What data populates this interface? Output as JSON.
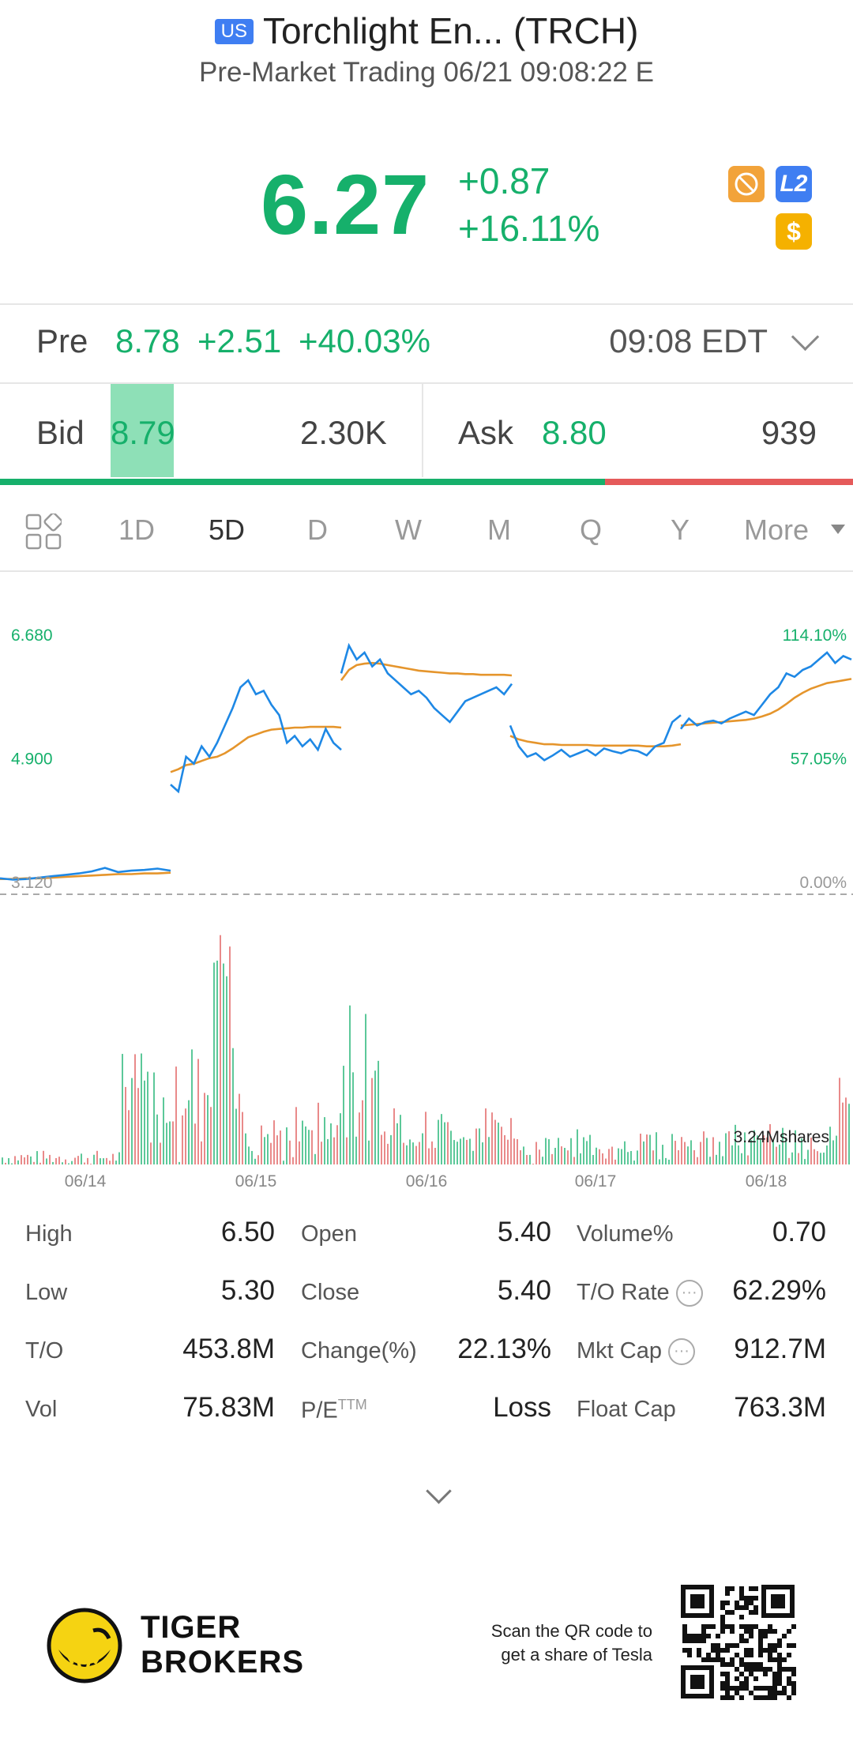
{
  "header": {
    "market_badge": "US",
    "title": "Torchlight En... (TRCH)",
    "subtitle": "Pre-Market Trading 06/21 09:08:22 E"
  },
  "quote": {
    "price": "6.27",
    "change": "+0.87",
    "change_pct": "+16.11%"
  },
  "icons": [
    "no-sign-icon",
    "level2-icon",
    "dollar-icon"
  ],
  "level2_label": "L2",
  "dollar_label": "$",
  "pre_market": {
    "label": "Pre",
    "price": "8.78",
    "change": "+2.51",
    "change_pct": "+40.03%",
    "time": "09:08 EDT"
  },
  "bid_ask": {
    "bid_label": "Bid",
    "bid_price": "8.79",
    "bid_size": "2.30K",
    "ask_label": "Ask",
    "ask_price": "8.80",
    "ask_size": "939",
    "bid_ratio": 0.71
  },
  "tabs": {
    "items": [
      "1D",
      "5D",
      "D",
      "W",
      "M",
      "Q",
      "Y",
      "More"
    ],
    "active": "5D"
  },
  "colors": {
    "green": "#16b06b",
    "red": "#e55a5a",
    "price_line": "#1e88e5",
    "avg_line": "#e5952c"
  },
  "chart_data": {
    "type": "line",
    "x_labels": [
      "06/14",
      "06/15",
      "06/16",
      "06/17",
      "06/18"
    ],
    "y_left_labels": [
      "6.680",
      "4.900",
      "3.120"
    ],
    "y_right_labels": [
      "114.10%",
      "57.05%",
      "0.00%"
    ],
    "ylim": [
      3.12,
      6.68
    ],
    "reference_value": 3.12,
    "volume_label": "3.24Mshares",
    "series": [
      {
        "day": "06/14",
        "price": [
          3.35,
          3.33,
          3.34,
          3.36,
          3.38,
          3.4,
          3.42,
          3.45,
          3.5,
          3.44,
          3.46,
          3.47,
          3.49,
          3.46
        ],
        "avg": [
          3.34,
          3.34,
          3.35,
          3.35,
          3.36,
          3.37,
          3.38,
          3.39,
          3.4,
          3.41,
          3.41,
          3.42,
          3.42,
          3.43
        ]
      },
      {
        "day": "06/15",
        "price": [
          4.7,
          4.6,
          5.1,
          5.0,
          5.25,
          5.1,
          5.3,
          5.55,
          5.8,
          6.1,
          6.2,
          6.0,
          6.05,
          5.85,
          5.7,
          5.3,
          5.4,
          5.25,
          5.35,
          5.2,
          5.5,
          5.3,
          5.2
        ],
        "avg": [
          4.88,
          4.92,
          4.98,
          5.0,
          5.04,
          5.08,
          5.1,
          5.15,
          5.22,
          5.3,
          5.38,
          5.42,
          5.46,
          5.49,
          5.5,
          5.51,
          5.52,
          5.52,
          5.53,
          5.53,
          5.53,
          5.53,
          5.52
        ]
      },
      {
        "day": "06/16",
        "price": [
          6.3,
          6.7,
          6.5,
          6.6,
          6.4,
          6.5,
          6.3,
          6.2,
          6.1,
          6.0,
          6.05,
          5.95,
          5.8,
          5.7,
          5.6,
          5.75,
          5.9,
          5.95,
          6.0,
          6.05,
          6.1,
          6.0,
          6.15
        ],
        "avg": [
          6.2,
          6.35,
          6.42,
          6.44,
          6.45,
          6.44,
          6.42,
          6.4,
          6.38,
          6.36,
          6.34,
          6.33,
          6.32,
          6.31,
          6.3,
          6.3,
          6.29,
          6.29,
          6.28,
          6.28,
          6.28,
          6.28,
          6.27
        ]
      },
      {
        "day": "06/17",
        "price": [
          5.55,
          5.25,
          5.1,
          5.15,
          5.05,
          5.12,
          5.2,
          5.1,
          5.15,
          5.2,
          5.12,
          5.22,
          5.18,
          5.15,
          5.2,
          5.18,
          5.12,
          5.25,
          5.3,
          5.6,
          5.7
        ],
        "avg": [
          5.4,
          5.35,
          5.32,
          5.3,
          5.28,
          5.28,
          5.27,
          5.27,
          5.27,
          5.27,
          5.26,
          5.26,
          5.26,
          5.26,
          5.26,
          5.26,
          5.25,
          5.25,
          5.25,
          5.26,
          5.28
        ]
      },
      {
        "day": "06/18",
        "price": [
          5.5,
          5.65,
          5.55,
          5.6,
          5.62,
          5.58,
          5.65,
          5.7,
          5.75,
          5.7,
          5.85,
          6.0,
          6.1,
          6.3,
          6.25,
          6.35,
          6.4,
          6.5,
          6.6,
          6.45,
          6.55,
          6.5
        ],
        "avg": [
          5.55,
          5.56,
          5.57,
          5.58,
          5.59,
          5.6,
          5.61,
          5.62,
          5.63,
          5.65,
          5.68,
          5.72,
          5.78,
          5.86,
          5.95,
          6.02,
          6.08,
          6.12,
          6.16,
          6.18,
          6.2,
          6.22
        ]
      }
    ]
  },
  "stats": [
    {
      "label": "High",
      "value": "6.50"
    },
    {
      "label": "Open",
      "value": "5.40"
    },
    {
      "label": "Volume%",
      "value": "0.70"
    },
    {
      "label": "Low",
      "value": "5.30"
    },
    {
      "label": "Close",
      "value": "5.40"
    },
    {
      "label": "T/O Rate",
      "value": "62.29%"
    },
    {
      "label": "T/O",
      "value": "453.8M"
    },
    {
      "label": "Change(%)",
      "value": "22.13%"
    },
    {
      "label": "Mkt Cap",
      "value": "912.7M"
    },
    {
      "label": "Vol",
      "value": "75.83M"
    },
    {
      "label": "P/E",
      "label_sup": "TTM",
      "value": "Loss"
    },
    {
      "label": "Float Cap",
      "value": "763.3M"
    }
  ],
  "footer": {
    "brand_line1": "TIGER",
    "brand_line2": "BROKERS",
    "scan_line1": "Scan the QR code to",
    "scan_line2": "get a share of Tesla"
  }
}
